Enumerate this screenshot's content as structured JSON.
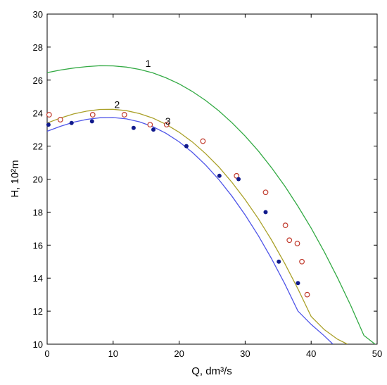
{
  "chart_data": {
    "type": "line",
    "xlabel": "Q, dm³/s",
    "ylabel": "H, 10²m",
    "xlim": [
      0,
      50
    ],
    "ylim": [
      10,
      30
    ],
    "xticks": [
      0,
      10,
      20,
      30,
      40,
      50
    ],
    "yticks": [
      10,
      12,
      14,
      16,
      18,
      20,
      22,
      24,
      26,
      28,
      30
    ],
    "grid": false,
    "colors": {
      "curve1": "#33aa44",
      "curve2": "#aaa028",
      "curve3": "#4f55e8",
      "open_points": "#c0392b",
      "filled_points": "#101a8c"
    },
    "curves": [
      {
        "label": "1",
        "color": "#33aa44",
        "x": [
          0,
          2,
          4,
          6,
          8,
          10,
          12,
          14,
          16,
          18,
          20,
          22,
          24,
          26,
          28,
          30,
          32,
          34,
          36,
          38,
          40,
          42,
          44,
          46,
          48,
          50
        ],
        "y": [
          26.45,
          26.61,
          26.73,
          26.82,
          26.87,
          26.86,
          26.79,
          26.65,
          26.44,
          26.14,
          25.77,
          25.31,
          24.77,
          24.14,
          23.42,
          22.61,
          21.7,
          20.69,
          19.58,
          18.36,
          17.03,
          15.58,
          14.02,
          12.34,
          10.53,
          9.9
        ]
      },
      {
        "label": "2",
        "color": "#aaa028",
        "x": [
          0,
          2,
          4,
          6,
          8,
          10,
          12,
          14,
          16,
          18,
          20,
          22,
          24,
          26,
          28,
          30,
          32,
          34,
          36,
          38,
          40,
          42,
          44,
          45.5
        ],
        "y": [
          23.4,
          23.7,
          23.95,
          24.12,
          24.22,
          24.23,
          24.15,
          23.97,
          23.7,
          23.32,
          22.84,
          22.25,
          21.55,
          20.74,
          19.81,
          18.76,
          17.6,
          16.31,
          14.89,
          13.35,
          11.68,
          10.88,
          10.3,
          10.0
        ]
      },
      {
        "label": "3",
        "color": "#4f55e8",
        "x": [
          0,
          2,
          4,
          6,
          8,
          10,
          12,
          14,
          16,
          18,
          20,
          22,
          24,
          26,
          28,
          30,
          32,
          34,
          36,
          38,
          40,
          42,
          43.3
        ],
        "y": [
          22.9,
          23.2,
          23.45,
          23.62,
          23.72,
          23.73,
          23.65,
          23.47,
          23.18,
          22.78,
          22.26,
          21.62,
          20.86,
          19.98,
          18.97,
          17.83,
          16.57,
          15.18,
          13.66,
          12.01,
          11.2,
          10.5,
          10.0
        ]
      }
    ],
    "curve_labels": [
      {
        "text": "1",
        "x": 15.3,
        "y": 26.8
      },
      {
        "text": "2",
        "x": 10.6,
        "y": 24.3
      },
      {
        "text": "3",
        "x": 18.3,
        "y": 23.3
      }
    ],
    "points_open": {
      "x": [
        0.3,
        2.0,
        6.9,
        11.7,
        15.6,
        18.1,
        23.6,
        28.7,
        33.1,
        36.1,
        36.7,
        37.9,
        38.6,
        39.4
      ],
      "y": [
        23.9,
        23.6,
        23.9,
        23.9,
        23.3,
        23.3,
        22.3,
        20.2,
        19.2,
        17.2,
        16.3,
        16.1,
        15.0,
        13.0
      ]
    },
    "points_filled": {
      "x": [
        0.2,
        3.7,
        6.8,
        13.1,
        16.1,
        21.1,
        26.1,
        29.0,
        33.1,
        35.1,
        38.0
      ],
      "y": [
        23.3,
        23.4,
        23.5,
        23.1,
        23.0,
        22.0,
        20.2,
        20.0,
        18.0,
        15.0,
        13.7
      ]
    }
  }
}
